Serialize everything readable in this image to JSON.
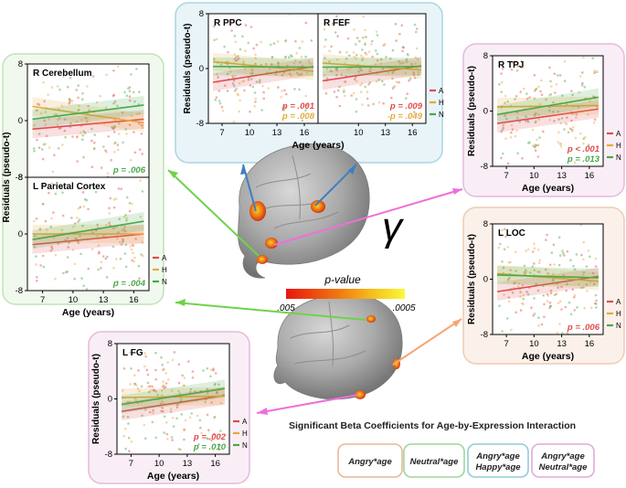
{
  "figure": {
    "gamma_symbol": "γ",
    "colorbar": {
      "title": "p-value",
      "min_label": ".005",
      "max_label": ".0005"
    },
    "legend_title": "Significant Beta Coefficients for Age-by-Expression Interaction",
    "legend_boxes": [
      {
        "lines": [
          "Angry*age"
        ],
        "color": "#e9b79a"
      },
      {
        "lines": [
          "Neutral*age"
        ],
        "color": "#9fd59a"
      },
      {
        "lines": [
          "Angry*age",
          "Happy*age"
        ],
        "color": "#8fcbdc"
      },
      {
        "lines": [
          "Angry*age",
          "Neutral*age"
        ],
        "color": "#e3a9d9"
      }
    ]
  },
  "colors": {
    "angry": "#e04b4b",
    "happy": "#e6a83a",
    "neutral": "#4aa84a",
    "blue_bg": "#e8f4f8",
    "green_bg": "#f1f9ee",
    "pink_bg": "#f9eef6",
    "peach_bg": "#fbf1ea"
  },
  "chart_data": [
    {
      "type": "scatter",
      "title": "R Cerebellum",
      "ylabel": "Residuals (pseudo-t)",
      "xlabel": "",
      "yticks": [
        "8",
        "0",
        "-8"
      ],
      "xticks": [],
      "ylim": [
        -8,
        8
      ],
      "xlim": [
        5.5,
        17.5
      ],
      "series": [
        {
          "name": "A",
          "line": [
            -1.2,
            0.2
          ]
        },
        {
          "name": "H",
          "line": [
            2,
            -0.3
          ]
        },
        {
          "name": "N",
          "line": [
            0.2,
            2.2
          ]
        }
      ],
      "pvals": [
        {
          "text": "p = .006",
          "series": "N"
        }
      ],
      "legend": []
    },
    {
      "type": "scatter",
      "title": "L Parietal Cortex",
      "ylabel": "Residuals (pseudo-t)",
      "xlabel": "Age (years)",
      "yticks": [
        "8",
        "0",
        "-8"
      ],
      "xticks": [
        "7",
        "10",
        "13",
        "16"
      ],
      "ylim": [
        -8,
        8
      ],
      "xlim": [
        5.5,
        17.5
      ],
      "series": [
        {
          "name": "A",
          "line": [
            -1.5,
            0
          ]
        },
        {
          "name": "H",
          "line": [
            0,
            0
          ]
        },
        {
          "name": "N",
          "line": [
            -0.8,
            1.8
          ]
        }
      ],
      "pvals": [
        {
          "text": "p = .004",
          "series": "N"
        }
      ],
      "legend": [
        "A",
        "H",
        "N"
      ]
    },
    {
      "type": "scatter",
      "title": "R PPC",
      "ylabel": "Residuals (pseudo-t)",
      "xlabel": "",
      "yticks": [
        "8",
        "0",
        "-8"
      ],
      "xticks": [
        "7",
        "10",
        "13",
        "16"
      ],
      "ylim": [
        -8,
        8
      ],
      "xlim": [
        5.5,
        17.5
      ],
      "series": [
        {
          "name": "A",
          "line": [
            -2,
            0.3
          ]
        },
        {
          "name": "H",
          "line": [
            1,
            -0.4
          ]
        },
        {
          "name": "N",
          "line": [
            0.3,
            0.2
          ]
        }
      ],
      "pvals": [
        {
          "text": "p = .001",
          "series": "A"
        },
        {
          "text": "p = .008",
          "series": "H"
        }
      ],
      "legend": []
    },
    {
      "type": "scatter",
      "title": "R FEF",
      "ylabel": "",
      "xlabel": "Age (years)",
      "yticks": [],
      "xticks": [
        "10",
        "13",
        "16"
      ],
      "ylim": [
        -8,
        8
      ],
      "xlim": [
        5.5,
        17.5
      ],
      "series": [
        {
          "name": "A",
          "line": [
            -1.8,
            0.4
          ]
        },
        {
          "name": "H",
          "line": [
            0.8,
            -0.2
          ]
        },
        {
          "name": "N",
          "line": [
            0.2,
            0.3
          ]
        }
      ],
      "pvals": [
        {
          "text": "p = .009",
          "series": "A"
        },
        {
          "text": "p = .049",
          "series": "H"
        }
      ],
      "legend": [
        "A",
        "H",
        "N"
      ]
    },
    {
      "type": "scatter",
      "title": "R TPJ",
      "ylabel": "Residuals (pseudo-t)",
      "xlabel": "Age (years)",
      "yticks": [
        "8",
        "0",
        "-8"
      ],
      "xticks": [
        "7",
        "10",
        "13",
        "16"
      ],
      "ylim": [
        -8,
        8
      ],
      "xlim": [
        5.5,
        17.5
      ],
      "series": [
        {
          "name": "A",
          "line": [
            -1.8,
            0.3
          ]
        },
        {
          "name": "H",
          "line": [
            0.6,
            0.8
          ]
        },
        {
          "name": "N",
          "line": [
            -0.5,
            2
          ]
        }
      ],
      "pvals": [
        {
          "text": "p < .001",
          "series": "A"
        },
        {
          "text": "p = .013",
          "series": "N"
        }
      ],
      "legend": [
        "A",
        "H",
        "N"
      ]
    },
    {
      "type": "scatter",
      "title": "L LOC",
      "ylabel": "Residuals (pseudo-t)",
      "xlabel": "Age (years)",
      "yticks": [
        "8",
        "0",
        "-8"
      ],
      "xticks": [
        "7",
        "10",
        "13",
        "16"
      ],
      "ylim": [
        -8,
        8
      ],
      "xlim": [
        5.5,
        17.5
      ],
      "series": [
        {
          "name": "A",
          "line": [
            -1.8,
            0.4
          ]
        },
        {
          "name": "H",
          "line": [
            0.8,
            -0.3
          ]
        },
        {
          "name": "N",
          "line": [
            0.6,
            0.2
          ]
        }
      ],
      "pvals": [
        {
          "text": "p = .006",
          "series": "A"
        }
      ],
      "legend": [
        "A",
        "H",
        "N"
      ]
    },
    {
      "type": "scatter",
      "title": "L FG",
      "ylabel": "Residuals (pseudo-t)",
      "xlabel": "Age (years)",
      "yticks": [
        "8",
        "0",
        "-8"
      ],
      "xticks": [
        "7",
        "10",
        "13",
        "16"
      ],
      "ylim": [
        -8,
        8
      ],
      "xlim": [
        5.5,
        17.5
      ],
      "series": [
        {
          "name": "A",
          "line": [
            -1.8,
            0.5
          ]
        },
        {
          "name": "H",
          "line": [
            0.2,
            0.4
          ]
        },
        {
          "name": "N",
          "line": [
            -0.8,
            1.5
          ]
        }
      ],
      "pvals": [
        {
          "text": "p = .002",
          "series": "A"
        },
        {
          "text": "p = .010",
          "series": "N"
        }
      ],
      "legend": [
        "A",
        "H",
        "N"
      ]
    }
  ]
}
